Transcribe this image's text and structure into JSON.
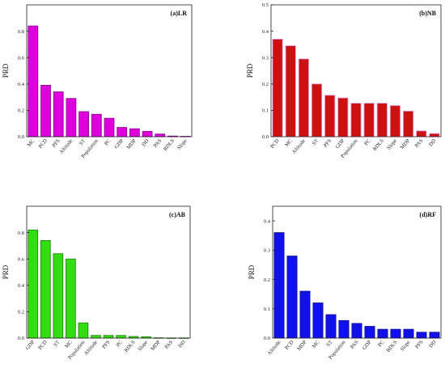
{
  "chart_data": [
    {
      "type": "bar",
      "title": "(a)LR",
      "xlabel": "",
      "ylabel": "PRD",
      "ylim": [
        0,
        1.0
      ],
      "yticks": [
        "0.0",
        "0.2",
        "0.4",
        "0.6",
        "0.8"
      ],
      "categories": [
        "MC",
        "PCD",
        "PFS",
        "Altitude",
        "ST",
        "Population",
        "PC",
        "GDP",
        "MDP",
        "DD",
        "PAS",
        "RDLS",
        "Slope"
      ],
      "values": [
        0.84,
        0.39,
        0.34,
        0.29,
        0.19,
        0.17,
        0.14,
        0.07,
        0.06,
        0.04,
        0.02,
        0.005,
        0.003
      ],
      "colors": {
        "bar": "#dd00dd",
        "edge": "#8a008a"
      }
    },
    {
      "type": "bar",
      "title": "(b)NB",
      "xlabel": "",
      "ylabel": "PRD",
      "ylim": [
        0,
        0.5
      ],
      "yticks": [
        "0.0",
        "0.1",
        "0.2",
        "0.3",
        "0.4",
        "0.5"
      ],
      "categories": [
        "PCD",
        "MC",
        "Altitude",
        "ST",
        "PFS",
        "GDP",
        "Population",
        "PC",
        "RDLS",
        "Slope",
        "MDP",
        "PAS",
        "DD"
      ],
      "values": [
        0.37,
        0.345,
        0.295,
        0.2,
        0.157,
        0.147,
        0.127,
        0.127,
        0.127,
        0.118,
        0.097,
        0.022,
        0.012
      ],
      "colors": {
        "bar": "#cc1111",
        "edge": "#e099e0"
      }
    },
    {
      "type": "bar",
      "title": "(c)AB",
      "xlabel": "",
      "ylabel": "PRD",
      "ylim": [
        0,
        1.0
      ],
      "yticks": [
        "0.0",
        "0.2",
        "0.4",
        "0.6",
        "0.8"
      ],
      "categories": [
        "GDP",
        "PCD",
        "ST",
        "MC",
        "Population",
        "Altitude",
        "PFS",
        "PC",
        "RDLS",
        "Slope",
        "MDP",
        "PAS",
        "DD"
      ],
      "values": [
        0.82,
        0.74,
        0.64,
        0.6,
        0.115,
        0.02,
        0.02,
        0.02,
        0.012,
        0.01,
        0.002,
        0.001,
        0.001
      ],
      "colors": {
        "bar": "#33dd11",
        "edge": "#1a7a08"
      }
    },
    {
      "type": "bar",
      "title": "(d)RF",
      "xlabel": "",
      "ylabel": "PRD",
      "ylim": [
        0,
        0.45
      ],
      "yticks": [
        "0.0",
        "0.1",
        "0.2",
        "0.3",
        "0.4"
      ],
      "categories": [
        "Altitude",
        "PCD",
        "MDP",
        "MC",
        "ST",
        "Population",
        "PAS",
        "GDP",
        "PC",
        "RDLS",
        "Slope",
        "PFS",
        "DD"
      ],
      "values": [
        0.36,
        0.28,
        0.16,
        0.12,
        0.08,
        0.06,
        0.05,
        0.04,
        0.03,
        0.03,
        0.03,
        0.02,
        0.02
      ],
      "colors": {
        "bar": "#1111ee",
        "edge": "#0a0a88"
      }
    }
  ]
}
